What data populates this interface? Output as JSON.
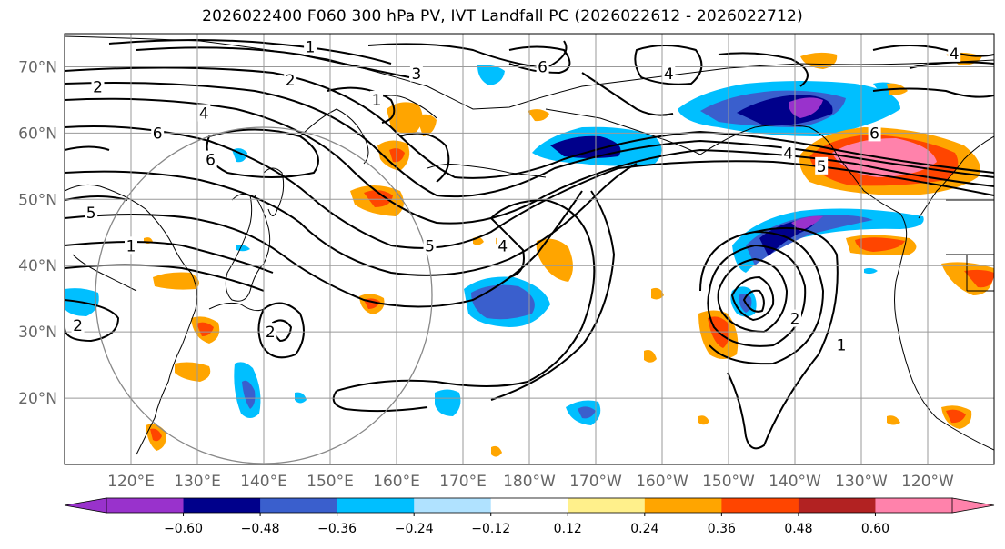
{
  "title": "2026022400 F060 300 hPa PV, IVT Landfall PC (2026022612 - 2026022712)",
  "map": {
    "lon_range": [
      110,
      250
    ],
    "lat_range": [
      10,
      75
    ],
    "lat_ticks": [
      {
        "value": 20,
        "label": "20°N"
      },
      {
        "value": 30,
        "label": "30°N"
      },
      {
        "value": 40,
        "label": "40°N"
      },
      {
        "value": 50,
        "label": "50°N"
      },
      {
        "value": 60,
        "label": "60°N"
      },
      {
        "value": 70,
        "label": "70°N"
      }
    ],
    "lon_ticks": [
      {
        "value": 120,
        "label": "120°E"
      },
      {
        "value": 130,
        "label": "130°E"
      },
      {
        "value": 140,
        "label": "140°E"
      },
      {
        "value": 150,
        "label": "150°E"
      },
      {
        "value": 160,
        "label": "160°E"
      },
      {
        "value": 170,
        "label": "170°E"
      },
      {
        "value": 180,
        "label": "180°W"
      },
      {
        "value": 190,
        "label": "170°W"
      },
      {
        "value": 200,
        "label": "160°W"
      },
      {
        "value": 210,
        "label": "150°W"
      },
      {
        "value": 220,
        "label": "140°W"
      },
      {
        "value": 230,
        "label": "130°W"
      },
      {
        "value": 240,
        "label": "120°W"
      }
    ],
    "grid": true,
    "contour_labels": [
      {
        "text": "1",
        "lon": 147,
        "lat": 73
      },
      {
        "text": "2",
        "lon": 115,
        "lat": 67
      },
      {
        "text": "2",
        "lon": 144,
        "lat": 68
      },
      {
        "text": "3",
        "lon": 163,
        "lat": 69
      },
      {
        "text": "1",
        "lon": 157,
        "lat": 65
      },
      {
        "text": "6",
        "lon": 182,
        "lat": 70
      },
      {
        "text": "4",
        "lon": 201,
        "lat": 69
      },
      {
        "text": "4",
        "lon": 131,
        "lat": 63
      },
      {
        "text": "6",
        "lon": 124,
        "lat": 60
      },
      {
        "text": "6",
        "lon": 132,
        "lat": 56
      },
      {
        "text": "5",
        "lon": 114,
        "lat": 48
      },
      {
        "text": "1",
        "lon": 120,
        "lat": 43
      },
      {
        "text": "2",
        "lon": 112,
        "lat": 31
      },
      {
        "text": "2",
        "lon": 141,
        "lat": 30
      },
      {
        "text": "5",
        "lon": 165,
        "lat": 43
      },
      {
        "text": "4",
        "lon": 176,
        "lat": 43
      },
      {
        "text": "4",
        "lon": 219,
        "lat": 57
      },
      {
        "text": "5",
        "lon": 224,
        "lat": 55
      },
      {
        "text": "6",
        "lon": 232,
        "lat": 60
      },
      {
        "text": "4",
        "lon": 244,
        "lat": 72
      },
      {
        "text": "2",
        "lon": 220,
        "lat": 32
      },
      {
        "text": "1",
        "lon": 227,
        "lat": 28
      }
    ]
  },
  "colorbar": {
    "ticks": [
      "−0.60",
      "−0.48",
      "−0.36",
      "−0.24",
      "−0.12",
      "0.12",
      "0.24",
      "0.36",
      "0.48",
      "0.60"
    ],
    "colors": [
      "#9932cc",
      "#00008b",
      "#3a5fcd",
      "#00bfff",
      "#b0e2ff",
      "#ffffff",
      "#fff08b",
      "#ffa500",
      "#ff4500",
      "#b22222",
      "#ff82ab"
    ],
    "under_color": "#9932cc",
    "over_color": "#ff82ab"
  }
}
